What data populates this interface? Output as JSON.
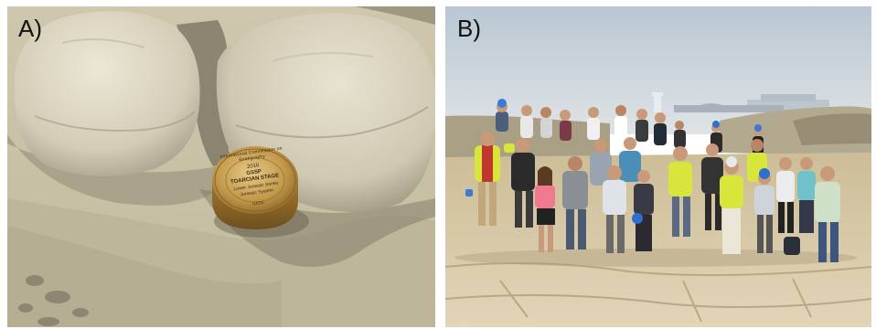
{
  "panels": [
    {
      "label": "A)",
      "plaque": {
        "ring_text": "International Commission on Stratigraphy",
        "year": "2016",
        "gssp": "GSSP",
        "stage": "TOARCIAN STAGE",
        "series": "Lower Jurassic Series",
        "system": "Jurassic System",
        "bottom_text": "IUGS"
      }
    },
    {
      "label": "B)"
    }
  ],
  "colors": {
    "rock_light": "#d9d3bf",
    "rock_shadow": "#8c8877",
    "plaque_bronze": "#b5893c",
    "sky": "#c9d3dc",
    "sea": "#8ea4b0",
    "vest_yellow": "#d8e53a"
  }
}
